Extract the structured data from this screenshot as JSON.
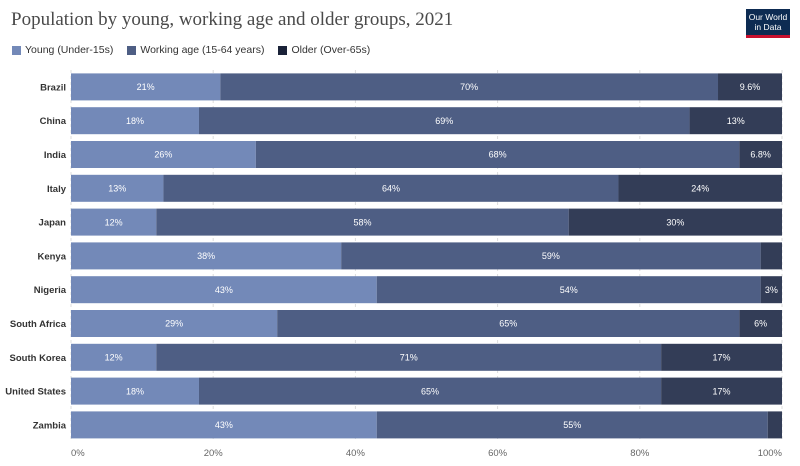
{
  "title": "Population by young, working age and older groups, 2021",
  "logo": {
    "line1": "Our World",
    "line2": "in Data"
  },
  "chart_data": {
    "type": "bar",
    "orientation": "horizontal",
    "stacked": true,
    "title": "Population by young, working age and older groups, 2021",
    "categories": [
      "Brazil",
      "China",
      "India",
      "Italy",
      "Japan",
      "Kenya",
      "Nigeria",
      "South Africa",
      "South Korea",
      "United States",
      "Zambia"
    ],
    "series": [
      {
        "name": "Young (Under-15s)",
        "color": "#7389b8",
        "values": [
          21,
          18,
          26,
          13,
          12,
          38,
          43,
          29,
          12,
          18,
          43
        ],
        "labels": [
          "21%",
          "18%",
          "26%",
          "13%",
          "12%",
          "38%",
          "43%",
          "29%",
          "12%",
          "18%",
          "43%"
        ]
      },
      {
        "name": "Working age (15-64 years)",
        "color": "#4e5e84",
        "values": [
          70,
          69,
          68,
          64,
          58,
          59,
          54,
          65,
          71,
          65,
          55
        ],
        "labels": [
          "70%",
          "69%",
          "68%",
          "64%",
          "58%",
          "59%",
          "54%",
          "65%",
          "71%",
          "65%",
          "55%"
        ]
      },
      {
        "name": "Older (Over-65s)",
        "color": "#333d57",
        "values": [
          9.6,
          13,
          6.8,
          24,
          30,
          3,
          3,
          6,
          17,
          17,
          2
        ],
        "labels": [
          "9.6%",
          "13%",
          "6.8%",
          "24%",
          "30%",
          "",
          "3%",
          "6%",
          "17%",
          "17%",
          ""
        ]
      }
    ],
    "x_ticks": [
      "0%",
      "20%",
      "40%",
      "60%",
      "80%",
      "100%"
    ],
    "xlim": [
      0,
      100
    ],
    "legend_position": "top-left",
    "grid": true
  }
}
